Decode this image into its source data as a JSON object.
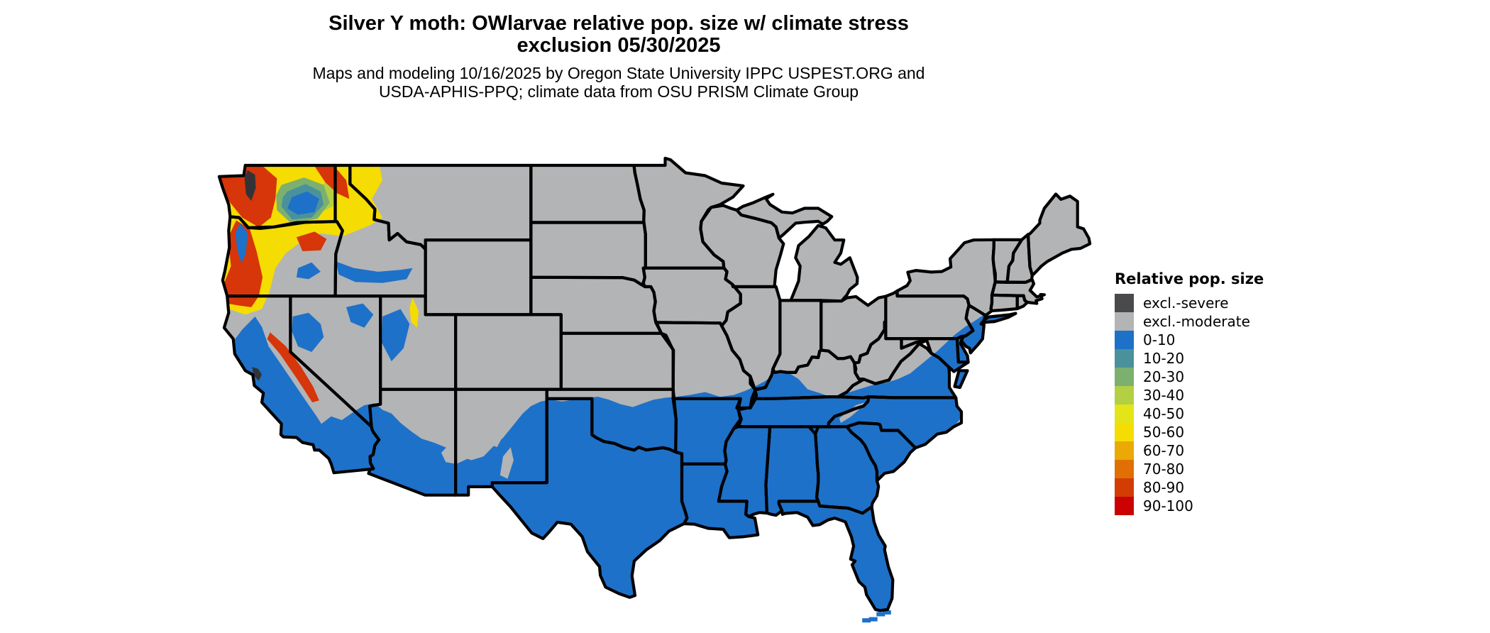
{
  "title": {
    "line1": "Silver Y moth: OWlarvae relative pop. size w/ climate stress",
    "line2": "exclusion 05/30/2025"
  },
  "subtitle": {
    "line1": "Maps and modeling 10/16/2025 by Oregon State University IPPC USPEST.ORG and",
    "line2": "USDA-APHIS-PPQ; climate data from OSU PRISM Climate Group"
  },
  "legend": {
    "title": "Relative pop. size",
    "items": [
      {
        "label": "excl.-severe",
        "color": "#4a4a4c"
      },
      {
        "label": "excl.-moderate",
        "color": "#b3b4b6"
      },
      {
        "label": "0-10",
        "color": "#1d71c9"
      },
      {
        "label": "10-20",
        "color": "#4a919c"
      },
      {
        "label": "20-30",
        "color": "#7cb06e"
      },
      {
        "label": "30-40",
        "color": "#b3cf44"
      },
      {
        "label": "40-50",
        "color": "#e3e519"
      },
      {
        "label": "50-60",
        "color": "#f5dc02"
      },
      {
        "label": "60-70",
        "color": "#eaa904"
      },
      {
        "label": "70-80",
        "color": "#e07004"
      },
      {
        "label": "80-90",
        "color": "#d33c02"
      },
      {
        "label": "90-100",
        "color": "#cc0202"
      }
    ]
  },
  "map": {
    "region": "Continental United States",
    "background": "#ffffff",
    "border_color": "#000000",
    "base_fill": "#b3b4b6"
  }
}
